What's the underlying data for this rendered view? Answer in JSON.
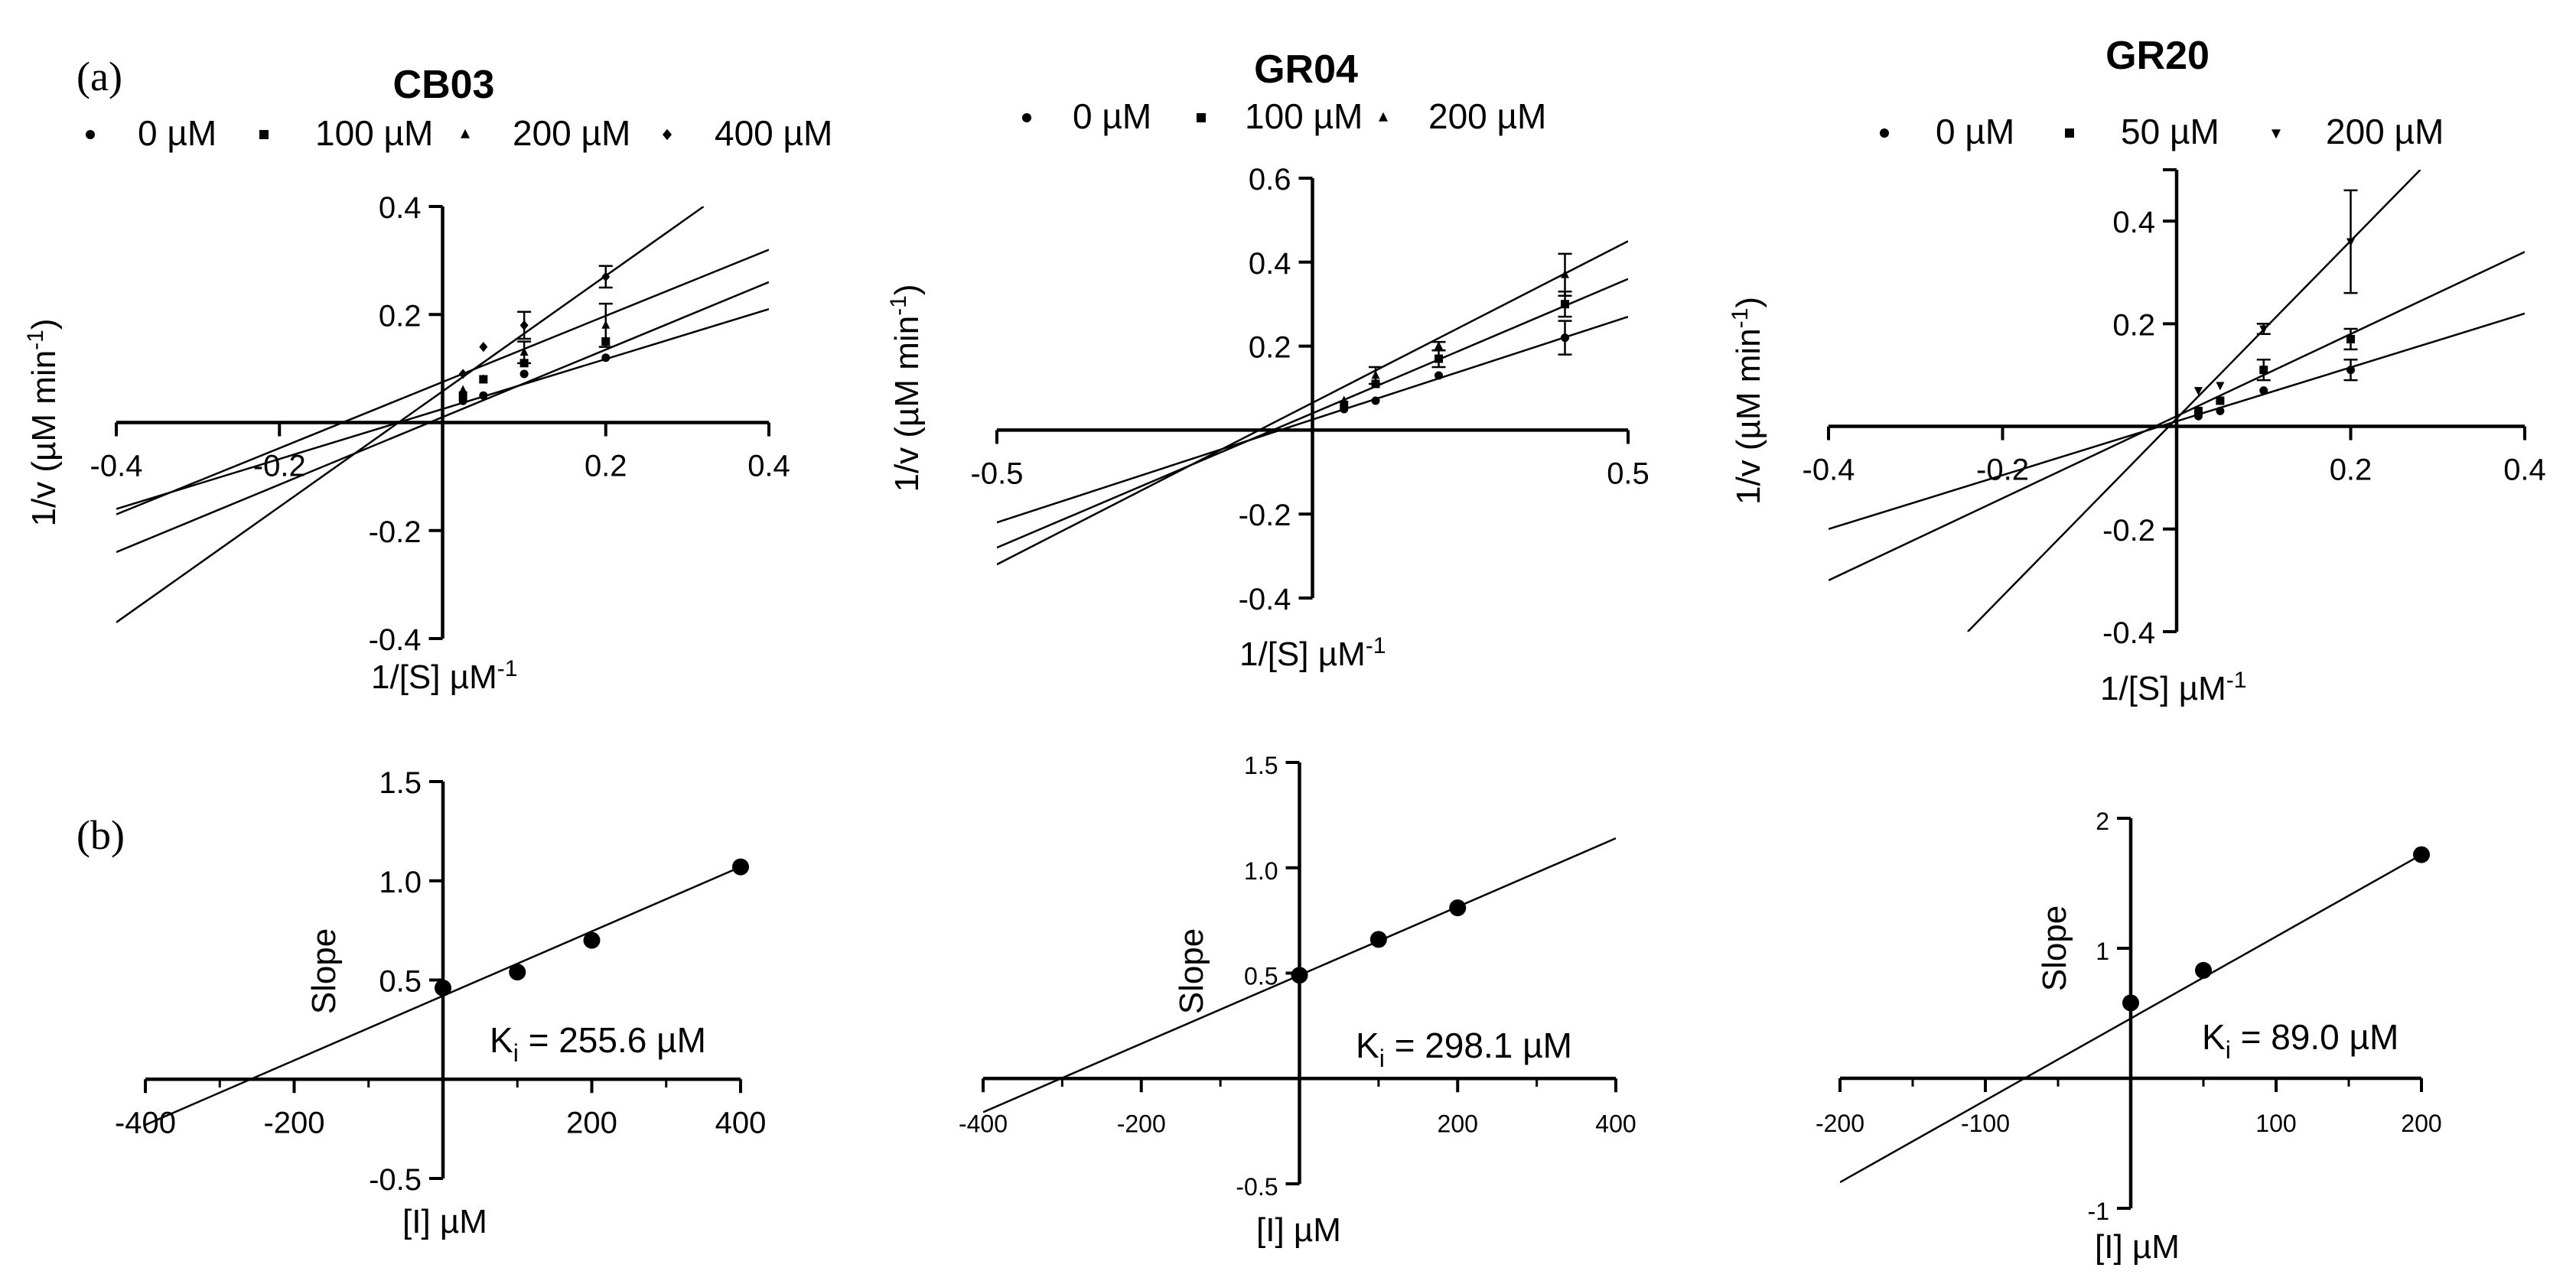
{
  "panel_labels": {
    "a": "(a)",
    "b": "(b)"
  },
  "chart_data": [
    {
      "id": "cb03_lb",
      "type": "line",
      "title": "CB03",
      "xlabel": "1/[S] µM",
      "xlabel_sup": "-1",
      "ylabel": "1/v (µM min",
      "ylabel_sup": "-1",
      "ylabel_end": ")",
      "xlim": [
        -0.4,
        0.4
      ],
      "ylim": [
        -0.4,
        0.4
      ],
      "xticks": [
        -0.4,
        -0.2,
        0.2,
        0.4
      ],
      "xtick_labels": [
        "-0.4",
        "-0.2",
        "0.2",
        "0.4"
      ],
      "yticks": [
        -0.4,
        -0.2,
        0.2,
        0.4
      ],
      "ytick_labels": [
        "-0.4",
        "-0.2",
        "0.2",
        "0.4"
      ],
      "series": [
        {
          "name": "0 µM",
          "marker": "circle",
          "line": [
            [
              -0.4,
              -0.16
            ],
            [
              0.4,
              0.21
            ]
          ],
          "x": [
            0.025,
            0.05,
            0.1,
            0.2
          ],
          "y": [
            0.04,
            0.05,
            0.09,
            0.12
          ],
          "err": [
            0,
            0,
            0,
            0
          ]
        },
        {
          "name": "100 µM",
          "marker": "square",
          "line": [
            [
              -0.4,
              -0.24
            ],
            [
              0.4,
              0.26
            ]
          ],
          "x": [
            0.025,
            0.05,
            0.1,
            0.2
          ],
          "y": [
            0.05,
            0.08,
            0.11,
            0.15
          ],
          "err": [
            0,
            0,
            0,
            0
          ]
        },
        {
          "name": "200 µM",
          "marker": "triangle",
          "line": [
            [
              -0.4,
              -0.17
            ],
            [
              0.4,
              0.32
            ]
          ],
          "x": [
            0.025,
            0.05,
            0.1,
            0.2
          ],
          "y": [
            0.06,
            0.08,
            0.13,
            0.18
          ],
          "err": [
            0,
            0,
            0.02,
            0.04
          ]
        },
        {
          "name": "400 µM",
          "marker": "diamond",
          "line": [
            [
              -0.4,
              -0.37
            ],
            [
              0.32,
              0.4
            ]
          ],
          "x": [
            0.025,
            0.05,
            0.1,
            0.2
          ],
          "y": [
            0.09,
            0.14,
            0.18,
            0.27
          ],
          "err": [
            0,
            0,
            0.025,
            0.02
          ]
        }
      ]
    },
    {
      "id": "gr04_lb",
      "type": "line",
      "title": "GR04",
      "xlabel": "1/[S] µM",
      "xlabel_sup": "-1",
      "ylabel": "1/v (µM min",
      "ylabel_sup": "-1",
      "ylabel_end": ")",
      "xlim": [
        -0.5,
        0.5
      ],
      "ylim": [
        -0.4,
        0.6
      ],
      "xticks": [
        -0.5,
        0.5
      ],
      "xtick_labels": [
        "-0.5",
        "0.5"
      ],
      "yticks": [
        -0.4,
        -0.2,
        0.2,
        0.4,
        0.6
      ],
      "ytick_labels": [
        "-0.4",
        "-0.2",
        "0.2",
        "0.4",
        "0.6"
      ],
      "series": [
        {
          "name": "0 µM",
          "marker": "circle",
          "line": [
            [
              -0.5,
              -0.22
            ],
            [
              0.5,
              0.27
            ]
          ],
          "x": [
            0.05,
            0.1,
            0.2,
            0.4
          ],
          "y": [
            0.05,
            0.07,
            0.13,
            0.22
          ],
          "err": [
            0,
            0,
            0,
            0.04
          ]
        },
        {
          "name": "100 µM",
          "marker": "square",
          "line": [
            [
              -0.5,
              -0.28
            ],
            [
              0.5,
              0.36
            ]
          ],
          "x": [
            0.05,
            0.1,
            0.2,
            0.4
          ],
          "y": [
            0.06,
            0.11,
            0.17,
            0.3
          ],
          "err": [
            0,
            0,
            0.02,
            0.03
          ]
        },
        {
          "name": "200 µM",
          "marker": "triangle",
          "line": [
            [
              -0.5,
              -0.32
            ],
            [
              0.5,
              0.45
            ]
          ],
          "x": [
            0.05,
            0.1,
            0.2,
            0.4
          ],
          "y": [
            0.07,
            0.13,
            0.2,
            0.37
          ],
          "err": [
            0,
            0.02,
            0.01,
            0.05
          ]
        }
      ]
    },
    {
      "id": "gr20_lb",
      "type": "line",
      "title": "GR20",
      "xlabel": "1/[S] µM",
      "xlabel_sup": "-1",
      "ylabel": "1/v (µM min",
      "ylabel_sup": "-1",
      "ylabel_end": ")",
      "xlim": [
        -0.4,
        0.4
      ],
      "ylim": [
        -0.4,
        0.5
      ],
      "xticks": [
        -0.4,
        -0.2,
        0.2,
        0.4
      ],
      "xtick_labels": [
        "-0.4",
        "-0.2",
        "0.2",
        "0.4"
      ],
      "yticks": [
        -0.4,
        -0.2,
        0.2,
        0.4
      ],
      "ytick_labels": [
        "-0.4",
        "-0.2",
        "0.2",
        "0.4"
      ],
      "series": [
        {
          "name": "0 µM",
          "marker": "circle",
          "line": [
            [
              -0.4,
              -0.2
            ],
            [
              0.4,
              0.22
            ]
          ],
          "x": [
            0.025,
            0.05,
            0.1,
            0.2
          ],
          "y": [
            0.02,
            0.03,
            0.07,
            0.11
          ],
          "err": [
            0,
            0,
            0,
            0.02
          ]
        },
        {
          "name": "50 µM",
          "marker": "square",
          "line": [
            [
              -0.4,
              -0.3
            ],
            [
              0.4,
              0.34
            ]
          ],
          "x": [
            0.025,
            0.05,
            0.1,
            0.2
          ],
          "y": [
            0.03,
            0.05,
            0.11,
            0.17
          ],
          "err": [
            0,
            0,
            0.02,
            0.02
          ]
        },
        {
          "name": "200 µM",
          "marker": "triangle-down",
          "line": [
            [
              -0.24,
              -0.4
            ],
            [
              0.28,
              0.5
            ]
          ],
          "x": [
            0.025,
            0.05,
            0.1,
            0.2
          ],
          "y": [
            0.07,
            0.08,
            0.19,
            0.36
          ],
          "err": [
            0,
            0,
            0.01,
            0.1
          ]
        }
      ]
    },
    {
      "id": "cb03_slope",
      "type": "scatter",
      "xlabel": "[I] µM",
      "ylabel": "Slope",
      "xlim": [
        -400,
        400
      ],
      "ylim": [
        -0.5,
        1.5
      ],
      "xticks": [
        -400,
        -200,
        200,
        400
      ],
      "xtick_labels": [
        "-400",
        "-200",
        "200",
        "400"
      ],
      "yticks": [
        -0.5,
        0.5,
        1.0,
        1.5
      ],
      "ytick_labels": [
        "-0.5",
        "0.5",
        "1.0",
        "1.5"
      ],
      "minor_x": [
        -300,
        -100,
        100,
        300
      ],
      "line": [
        [
          -400,
          -0.23
        ],
        [
          400,
          1.07
        ]
      ],
      "x": [
        0,
        100,
        200,
        400
      ],
      "y": [
        0.46,
        0.54,
        0.7,
        1.07
      ],
      "ki_label": "K",
      "ki_sub": "i",
      "ki_value": " = 255.6 µM"
    },
    {
      "id": "gr04_slope",
      "type": "scatter",
      "xlabel": "[I] µM",
      "ylabel": "Slope",
      "xlim": [
        -400,
        400
      ],
      "ylim": [
        -0.5,
        1.5
      ],
      "xticks": [
        -400,
        -200,
        200,
        400
      ],
      "xtick_labels": [
        "-400",
        "-200",
        "200",
        "400"
      ],
      "yticks": [
        -0.5,
        0.5,
        1.0,
        1.5
      ],
      "ytick_labels": [
        "-0.5",
        "0.5",
        "1.0",
        "1.5"
      ],
      "minor_x": [
        -300,
        -100,
        100,
        300
      ],
      "line": [
        [
          -400,
          -0.16
        ],
        [
          400,
          1.14
        ]
      ],
      "x": [
        0,
        100,
        200
      ],
      "y": [
        0.49,
        0.66,
        0.81
      ],
      "ki_label": "K",
      "ki_sub": "i",
      "ki_value": " = 298.1 µM"
    },
    {
      "id": "gr20_slope",
      "type": "scatter",
      "xlabel": "[I] µM",
      "ylabel": "Slope",
      "xlim": [
        -200,
        200
      ],
      "ylim": [
        -1,
        2
      ],
      "xticks": [
        -200,
        -100,
        100,
        200
      ],
      "xtick_labels": [
        "-200",
        "-100",
        "100",
        "200"
      ],
      "yticks": [
        -1,
        1,
        2
      ],
      "ytick_labels": [
        "-1",
        "1",
        "2"
      ],
      "minor_x": [
        -150,
        -50,
        50,
        150
      ],
      "line": [
        [
          -200,
          -0.8
        ],
        [
          200,
          1.72
        ]
      ],
      "x": [
        0,
        50,
        200
      ],
      "y": [
        0.58,
        0.83,
        1.72
      ],
      "ki_label": "K",
      "ki_sub": "i",
      "ki_value": " = 89.0 µM"
    }
  ]
}
